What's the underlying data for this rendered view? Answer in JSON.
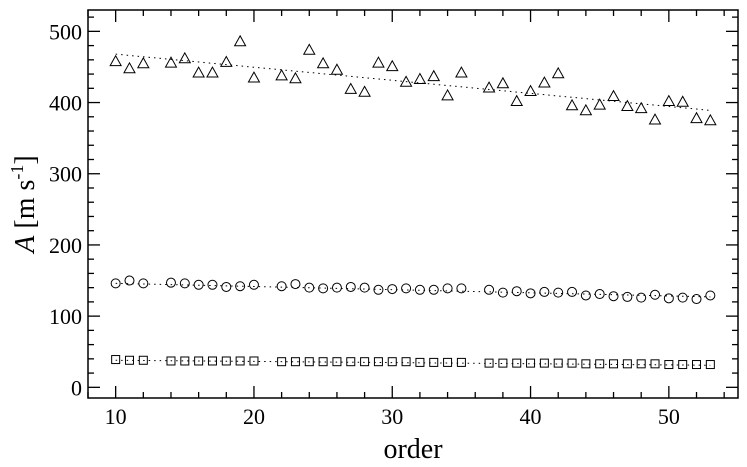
{
  "chart_data": {
    "type": "scatter",
    "title": "",
    "xlabel": "order",
    "ylabel": {
      "symbol": "A",
      "open": " [m s",
      "sup": "-1",
      "close": "]"
    },
    "xlim": [
      8,
      55
    ],
    "ylim": [
      -15,
      530
    ],
    "xticks": {
      "major": [
        10,
        20,
        30,
        40,
        50
      ],
      "labels": [
        "10",
        "20",
        "30",
        "40",
        "50"
      ],
      "minor_step": 2
    },
    "yticks": {
      "major": [
        0,
        100,
        200,
        300,
        400,
        500
      ],
      "labels": [
        "0",
        "100",
        "200",
        "300",
        "400",
        "500"
      ],
      "minor_step": 20
    },
    "grid": false,
    "legend": "none",
    "series": [
      {
        "marker": "triangle",
        "points": [
          [
            10,
            458
          ],
          [
            11,
            448
          ],
          [
            12,
            455
          ],
          [
            14,
            456
          ],
          [
            15,
            462
          ],
          [
            16,
            442
          ],
          [
            17,
            442
          ],
          [
            18,
            457
          ],
          [
            19,
            486
          ],
          [
            20,
            435
          ],
          [
            22,
            438
          ],
          [
            23,
            434
          ],
          [
            24,
            474
          ],
          [
            25,
            455
          ],
          [
            26,
            446
          ],
          [
            27,
            419
          ],
          [
            28,
            415
          ],
          [
            29,
            456
          ],
          [
            30,
            451
          ],
          [
            31,
            429
          ],
          [
            32,
            433
          ],
          [
            33,
            437
          ],
          [
            34,
            410
          ],
          [
            35,
            442
          ],
          [
            37,
            421
          ],
          [
            38,
            427
          ],
          [
            39,
            402
          ],
          [
            40,
            416
          ],
          [
            41,
            428
          ],
          [
            42,
            441
          ],
          [
            43,
            396
          ],
          [
            44,
            389
          ],
          [
            45,
            397
          ],
          [
            46,
            409
          ],
          [
            47,
            395
          ],
          [
            48,
            392
          ],
          [
            49,
            376
          ],
          [
            50,
            402
          ],
          [
            51,
            401
          ],
          [
            52,
            378
          ],
          [
            53,
            375
          ]
        ],
        "trend": {
          "x": [
            10,
            53
          ],
          "y": [
            468,
            389
          ]
        }
      },
      {
        "marker": "circle",
        "points": [
          [
            10,
            146
          ],
          [
            11,
            150
          ],
          [
            12,
            146
          ],
          [
            14,
            147
          ],
          [
            15,
            146
          ],
          [
            16,
            144
          ],
          [
            17,
            144
          ],
          [
            18,
            141
          ],
          [
            19,
            142
          ],
          [
            20,
            144
          ],
          [
            22,
            142
          ],
          [
            23,
            145
          ],
          [
            24,
            140
          ],
          [
            25,
            139
          ],
          [
            26,
            140
          ],
          [
            27,
            141
          ],
          [
            28,
            140
          ],
          [
            29,
            137
          ],
          [
            30,
            138
          ],
          [
            31,
            139
          ],
          [
            32,
            137
          ],
          [
            33,
            137
          ],
          [
            34,
            139
          ],
          [
            35,
            139
          ],
          [
            37,
            137
          ],
          [
            38,
            133
          ],
          [
            39,
            135
          ],
          [
            40,
            132
          ],
          [
            41,
            134
          ],
          [
            42,
            133
          ],
          [
            43,
            134
          ],
          [
            44,
            129
          ],
          [
            45,
            131
          ],
          [
            46,
            128
          ],
          [
            47,
            127
          ],
          [
            48,
            126
          ],
          [
            49,
            130
          ],
          [
            50,
            125
          ],
          [
            51,
            126
          ],
          [
            52,
            124
          ],
          [
            53,
            129
          ]
        ],
        "trend": {
          "x": [
            10,
            53
          ],
          "y": [
            146,
            127
          ]
        }
      },
      {
        "marker": "square",
        "points": [
          [
            10,
            39
          ],
          [
            11,
            38
          ],
          [
            12,
            38
          ],
          [
            14,
            37
          ],
          [
            15,
            37
          ],
          [
            16,
            37
          ],
          [
            17,
            37
          ],
          [
            18,
            37
          ],
          [
            19,
            37
          ],
          [
            20,
            37
          ],
          [
            22,
            36
          ],
          [
            23,
            36
          ],
          [
            24,
            36
          ],
          [
            25,
            36
          ],
          [
            26,
            36
          ],
          [
            27,
            36
          ],
          [
            28,
            36
          ],
          [
            29,
            36
          ],
          [
            30,
            36
          ],
          [
            31,
            36
          ],
          [
            32,
            35
          ],
          [
            33,
            35
          ],
          [
            34,
            35
          ],
          [
            35,
            35
          ],
          [
            37,
            34
          ],
          [
            38,
            34
          ],
          [
            39,
            34
          ],
          [
            40,
            34
          ],
          [
            41,
            34
          ],
          [
            42,
            34
          ],
          [
            43,
            34
          ],
          [
            44,
            33
          ],
          [
            45,
            33
          ],
          [
            46,
            33
          ],
          [
            47,
            33
          ],
          [
            48,
            33
          ],
          [
            49,
            33
          ],
          [
            50,
            32
          ],
          [
            51,
            32
          ],
          [
            52,
            32
          ],
          [
            53,
            32
          ]
        ],
        "trend": {
          "x": [
            10,
            53
          ],
          "y": [
            38,
            31
          ]
        }
      }
    ]
  }
}
